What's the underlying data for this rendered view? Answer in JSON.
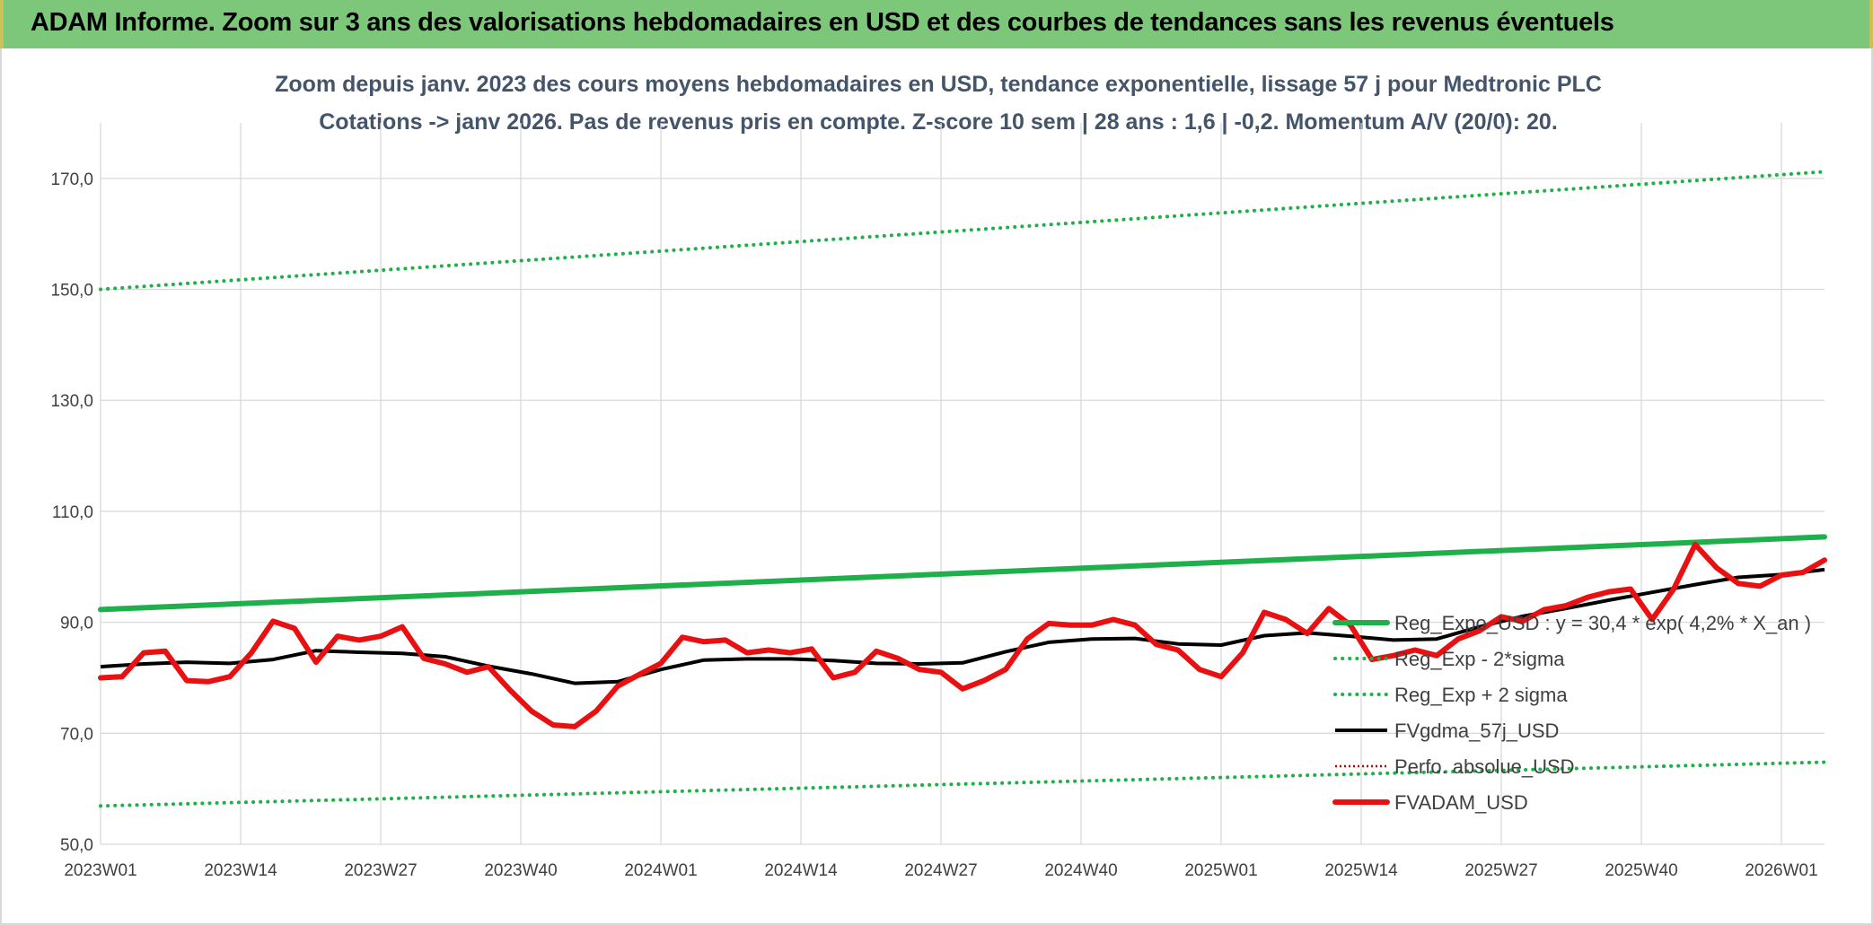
{
  "banner": {
    "title": "ADAM Informe. Zoom sur 3 ans des valorisations hebdomadaires en USD et des courbes de tendances sans les revenus éventuels"
  },
  "colors": {
    "banner_bg": "#7dc77a",
    "trend_green": "#1fb04b",
    "smooth_black": "#000000",
    "price_red": "#e81010",
    "perfo_red": "#c00000",
    "grid": "#d9d9d9",
    "subtitle": "#44546a"
  },
  "chart_data": {
    "type": "line",
    "title_line1": "Zoom depuis janv. 2023 des cours moyens hebdomadaires en USD, tendance exponentielle, lissage 57 j pour Medtronic PLC",
    "title_line2": "Cotations -> janv 2026. Pas de revenus pris en compte. Z-score 10 sem | 28 ans : 1,6 | -0,2. Momentum A/V (20/0): 20.",
    "ylim": [
      50,
      180
    ],
    "yticks": [
      "50,0",
      "70,0",
      "90,0",
      "110,0",
      "130,0",
      "150,0",
      "170,0"
    ],
    "ytick_values": [
      50,
      70,
      90,
      110,
      130,
      150,
      170
    ],
    "xticks": [
      "2023W01",
      "2023W14",
      "2023W27",
      "2023W40",
      "2024W01",
      "2024W14",
      "2024W27",
      "2024W40",
      "2025W01",
      "2025W14",
      "2025W27",
      "2025W40",
      "2026W01"
    ],
    "xtick_index": [
      0,
      13,
      26,
      39,
      52,
      65,
      78,
      91,
      104,
      117,
      130,
      143,
      156
    ],
    "n_weeks": 161,
    "grid": true,
    "legend_position": "right, inside plot",
    "series": [
      {
        "name": "Reg_Expo_USD : y = 30,4 * exp( 4,2% *  X_an )",
        "style": "solid-thick",
        "color": "#1fb04b",
        "x": [
          0,
          160
        ],
        "y": [
          92.3,
          105.4
        ]
      },
      {
        "name": "Reg_Exp - 2*sigma",
        "style": "dotted",
        "color": "#1fb04b",
        "x": [
          0,
          160
        ],
        "y": [
          56.9,
          64.8
        ]
      },
      {
        "name": "Reg_Exp + 2 sigma",
        "style": "dotted",
        "color": "#1fb04b",
        "x": [
          0,
          160
        ],
        "y": [
          150.0,
          171.2
        ]
      },
      {
        "name": "FVgdma_57j_USD",
        "style": "solid",
        "color": "#000000",
        "x": [
          0,
          4,
          8,
          12,
          16,
          20,
          24,
          28,
          32,
          36,
          40,
          44,
          48,
          52,
          56,
          60,
          64,
          68,
          72,
          76,
          80,
          84,
          88,
          92,
          96,
          100,
          104,
          108,
          112,
          116,
          120,
          124,
          128,
          132,
          136,
          140,
          144,
          148,
          152,
          156,
          160
        ],
        "y": [
          82.0,
          82.5,
          82.8,
          82.6,
          83.3,
          84.9,
          84.6,
          84.4,
          83.8,
          82.1,
          80.7,
          79.0,
          79.3,
          81.5,
          83.2,
          83.4,
          83.4,
          83.1,
          82.6,
          82.5,
          82.7,
          84.7,
          86.4,
          87.0,
          87.1,
          86.1,
          85.9,
          87.6,
          88.1,
          87.5,
          86.8,
          87.0,
          89.2,
          91.1,
          92.5,
          94.0,
          95.4,
          96.8,
          98.1,
          98.6,
          99.5
        ]
      },
      {
        "name": "Perfo. absolue_USD",
        "style": "dotted-thin",
        "color": "#c00000",
        "x": [],
        "y": []
      },
      {
        "name": "FVADAM_USD",
        "style": "solid-thick",
        "color": "#e81010",
        "x": [
          0,
          2,
          4,
          6,
          8,
          10,
          12,
          14,
          16,
          18,
          20,
          22,
          24,
          26,
          28,
          30,
          32,
          34,
          36,
          38,
          40,
          42,
          44,
          46,
          48,
          50,
          52,
          54,
          56,
          58,
          60,
          62,
          64,
          66,
          68,
          70,
          72,
          74,
          76,
          78,
          80,
          82,
          84,
          86,
          88,
          90,
          92,
          94,
          96,
          98,
          100,
          102,
          104,
          106,
          108,
          110,
          112,
          114,
          116,
          118,
          120,
          122,
          124,
          126,
          128,
          130,
          132,
          134,
          136,
          138,
          140,
          142,
          144,
          146,
          148,
          150,
          152,
          154,
          156,
          158,
          160
        ],
        "y": [
          80.0,
          80.2,
          84.5,
          84.8,
          79.5,
          79.3,
          80.2,
          84.5,
          90.2,
          88.9,
          82.8,
          87.5,
          86.8,
          87.5,
          89.2,
          83.5,
          82.5,
          81.0,
          82.0,
          77.8,
          74.0,
          71.5,
          71.2,
          74.0,
          78.5,
          80.6,
          82.6,
          87.3,
          86.5,
          86.8,
          84.5,
          85.0,
          84.5,
          85.2,
          80.0,
          81.0,
          84.8,
          83.5,
          81.5,
          81.0,
          78.0,
          79.5,
          81.5,
          87.0,
          89.8,
          89.5,
          89.5,
          90.5,
          89.5,
          86.0,
          85.0,
          81.5,
          80.2,
          84.5,
          91.8,
          90.5,
          88.0,
          92.5,
          89.5,
          83.3,
          84.0,
          85.0,
          84.0,
          87.0,
          88.5,
          91.0,
          90.2,
          92.3,
          93.0,
          94.5,
          95.5,
          96.0,
          90.5,
          96.0,
          104.0,
          99.8,
          97.0,
          96.5,
          98.5,
          99.0,
          101.2
        ]
      }
    ]
  }
}
